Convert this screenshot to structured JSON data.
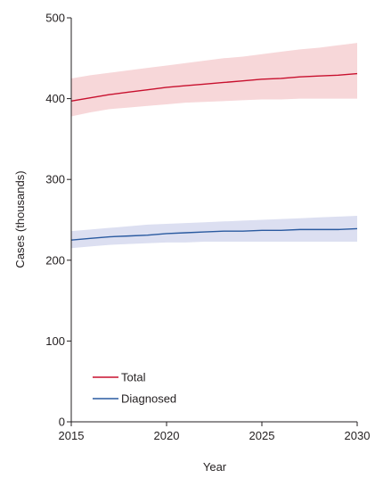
{
  "chart_data": {
    "type": "line",
    "xlabel": "Year",
    "ylabel": "Cases (thousands)",
    "xlim": [
      2015,
      2030
    ],
    "ylim": [
      0,
      500
    ],
    "x_ticks": [
      2015,
      2020,
      2025,
      2030
    ],
    "y_ticks": [
      0,
      100,
      200,
      300,
      400,
      500
    ],
    "grid": false,
    "legend_position": "bottom-left",
    "x": [
      2015,
      2016,
      2017,
      2018,
      2019,
      2020,
      2021,
      2022,
      2023,
      2024,
      2025,
      2026,
      2027,
      2028,
      2029,
      2030
    ],
    "series": [
      {
        "name": "Total",
        "color": "#c8102e",
        "band_color": "#f7d7d9",
        "values": [
          397,
          401,
          405,
          408,
          411,
          414,
          416,
          418,
          420,
          422,
          424,
          425,
          427,
          428,
          429,
          431
        ],
        "lower": [
          378,
          383,
          387,
          389,
          391,
          393,
          395,
          396,
          397,
          398,
          399,
          399,
          400,
          400,
          400,
          400
        ],
        "upper": [
          425,
          429,
          432,
          435,
          438,
          441,
          444,
          447,
          450,
          452,
          455,
          458,
          461,
          463,
          466,
          469
        ]
      },
      {
        "name": "Diagnosed",
        "color": "#2a5aa0",
        "band_color": "#dcdff1",
        "values": [
          225,
          227,
          229,
          230,
          231,
          233,
          234,
          235,
          236,
          236,
          237,
          237,
          238,
          238,
          238,
          239
        ],
        "lower": [
          215,
          217,
          219,
          220,
          221,
          222,
          222,
          223,
          223,
          223,
          223,
          223,
          223,
          223,
          223,
          223
        ],
        "upper": [
          236,
          238,
          240,
          242,
          244,
          245,
          246,
          247,
          248,
          249,
          250,
          251,
          252,
          253,
          254,
          255
        ]
      }
    ]
  }
}
